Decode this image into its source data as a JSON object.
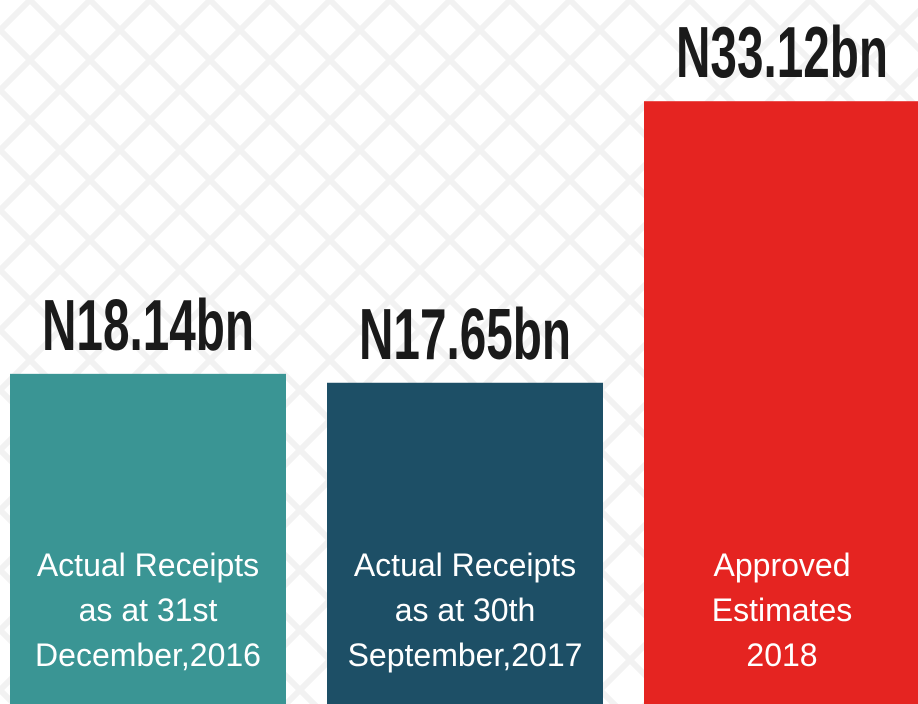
{
  "chart_data": {
    "type": "bar",
    "categories": [
      [
        "Actual Receipts",
        "as at 31st",
        "December,2016"
      ],
      [
        "Actual Receipts",
        "as at 30th",
        "September,2017"
      ],
      [
        "Approved",
        "Estimates",
        "2018"
      ]
    ],
    "values": [
      18.14,
      17.65,
      33.12
    ],
    "value_labels": [
      "N18.14bn",
      "N17.65bn",
      "N33.12bn"
    ],
    "colors": [
      "#3a9594",
      "#1d4f66",
      "#e52421"
    ]
  }
}
